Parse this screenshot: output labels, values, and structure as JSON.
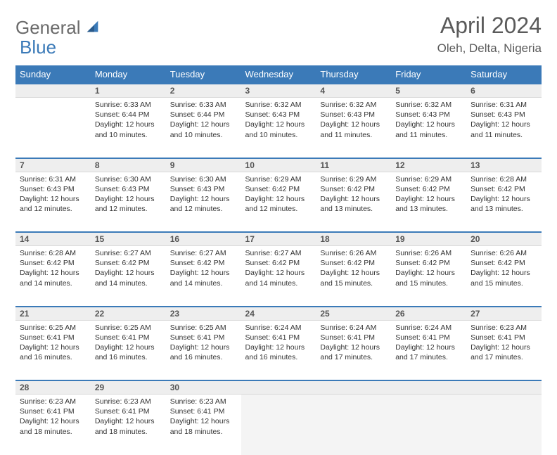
{
  "logo": {
    "word1": "General",
    "word2": "Blue"
  },
  "title": "April 2024",
  "location": "Oleh, Delta, Nigeria",
  "headers": [
    "Sunday",
    "Monday",
    "Tuesday",
    "Wednesday",
    "Thursday",
    "Friday",
    "Saturday"
  ],
  "colors": {
    "header_bg": "#3b7ab8",
    "header_text": "#ffffff",
    "daynum_bg": "#eeeeee",
    "border_accent": "#3b7ab8",
    "logo_gray": "#6b6b6b",
    "logo_blue": "#3b7ab8"
  },
  "weeks": [
    [
      null,
      {
        "n": "1",
        "sr": "Sunrise: 6:33 AM",
        "ss": "Sunset: 6:44 PM",
        "d1": "Daylight: 12 hours",
        "d2": "and 10 minutes."
      },
      {
        "n": "2",
        "sr": "Sunrise: 6:33 AM",
        "ss": "Sunset: 6:44 PM",
        "d1": "Daylight: 12 hours",
        "d2": "and 10 minutes."
      },
      {
        "n": "3",
        "sr": "Sunrise: 6:32 AM",
        "ss": "Sunset: 6:43 PM",
        "d1": "Daylight: 12 hours",
        "d2": "and 10 minutes."
      },
      {
        "n": "4",
        "sr": "Sunrise: 6:32 AM",
        "ss": "Sunset: 6:43 PM",
        "d1": "Daylight: 12 hours",
        "d2": "and 11 minutes."
      },
      {
        "n": "5",
        "sr": "Sunrise: 6:32 AM",
        "ss": "Sunset: 6:43 PM",
        "d1": "Daylight: 12 hours",
        "d2": "and 11 minutes."
      },
      {
        "n": "6",
        "sr": "Sunrise: 6:31 AM",
        "ss": "Sunset: 6:43 PM",
        "d1": "Daylight: 12 hours",
        "d2": "and 11 minutes."
      }
    ],
    [
      {
        "n": "7",
        "sr": "Sunrise: 6:31 AM",
        "ss": "Sunset: 6:43 PM",
        "d1": "Daylight: 12 hours",
        "d2": "and 12 minutes."
      },
      {
        "n": "8",
        "sr": "Sunrise: 6:30 AM",
        "ss": "Sunset: 6:43 PM",
        "d1": "Daylight: 12 hours",
        "d2": "and 12 minutes."
      },
      {
        "n": "9",
        "sr": "Sunrise: 6:30 AM",
        "ss": "Sunset: 6:43 PM",
        "d1": "Daylight: 12 hours",
        "d2": "and 12 minutes."
      },
      {
        "n": "10",
        "sr": "Sunrise: 6:29 AM",
        "ss": "Sunset: 6:42 PM",
        "d1": "Daylight: 12 hours",
        "d2": "and 12 minutes."
      },
      {
        "n": "11",
        "sr": "Sunrise: 6:29 AM",
        "ss": "Sunset: 6:42 PM",
        "d1": "Daylight: 12 hours",
        "d2": "and 13 minutes."
      },
      {
        "n": "12",
        "sr": "Sunrise: 6:29 AM",
        "ss": "Sunset: 6:42 PM",
        "d1": "Daylight: 12 hours",
        "d2": "and 13 minutes."
      },
      {
        "n": "13",
        "sr": "Sunrise: 6:28 AM",
        "ss": "Sunset: 6:42 PM",
        "d1": "Daylight: 12 hours",
        "d2": "and 13 minutes."
      }
    ],
    [
      {
        "n": "14",
        "sr": "Sunrise: 6:28 AM",
        "ss": "Sunset: 6:42 PM",
        "d1": "Daylight: 12 hours",
        "d2": "and 14 minutes."
      },
      {
        "n": "15",
        "sr": "Sunrise: 6:27 AM",
        "ss": "Sunset: 6:42 PM",
        "d1": "Daylight: 12 hours",
        "d2": "and 14 minutes."
      },
      {
        "n": "16",
        "sr": "Sunrise: 6:27 AM",
        "ss": "Sunset: 6:42 PM",
        "d1": "Daylight: 12 hours",
        "d2": "and 14 minutes."
      },
      {
        "n": "17",
        "sr": "Sunrise: 6:27 AM",
        "ss": "Sunset: 6:42 PM",
        "d1": "Daylight: 12 hours",
        "d2": "and 14 minutes."
      },
      {
        "n": "18",
        "sr": "Sunrise: 6:26 AM",
        "ss": "Sunset: 6:42 PM",
        "d1": "Daylight: 12 hours",
        "d2": "and 15 minutes."
      },
      {
        "n": "19",
        "sr": "Sunrise: 6:26 AM",
        "ss": "Sunset: 6:42 PM",
        "d1": "Daylight: 12 hours",
        "d2": "and 15 minutes."
      },
      {
        "n": "20",
        "sr": "Sunrise: 6:26 AM",
        "ss": "Sunset: 6:42 PM",
        "d1": "Daylight: 12 hours",
        "d2": "and 15 minutes."
      }
    ],
    [
      {
        "n": "21",
        "sr": "Sunrise: 6:25 AM",
        "ss": "Sunset: 6:41 PM",
        "d1": "Daylight: 12 hours",
        "d2": "and 16 minutes."
      },
      {
        "n": "22",
        "sr": "Sunrise: 6:25 AM",
        "ss": "Sunset: 6:41 PM",
        "d1": "Daylight: 12 hours",
        "d2": "and 16 minutes."
      },
      {
        "n": "23",
        "sr": "Sunrise: 6:25 AM",
        "ss": "Sunset: 6:41 PM",
        "d1": "Daylight: 12 hours",
        "d2": "and 16 minutes."
      },
      {
        "n": "24",
        "sr": "Sunrise: 6:24 AM",
        "ss": "Sunset: 6:41 PM",
        "d1": "Daylight: 12 hours",
        "d2": "and 16 minutes."
      },
      {
        "n": "25",
        "sr": "Sunrise: 6:24 AM",
        "ss": "Sunset: 6:41 PM",
        "d1": "Daylight: 12 hours",
        "d2": "and 17 minutes."
      },
      {
        "n": "26",
        "sr": "Sunrise: 6:24 AM",
        "ss": "Sunset: 6:41 PM",
        "d1": "Daylight: 12 hours",
        "d2": "and 17 minutes."
      },
      {
        "n": "27",
        "sr": "Sunrise: 6:23 AM",
        "ss": "Sunset: 6:41 PM",
        "d1": "Daylight: 12 hours",
        "d2": "and 17 minutes."
      }
    ],
    [
      {
        "n": "28",
        "sr": "Sunrise: 6:23 AM",
        "ss": "Sunset: 6:41 PM",
        "d1": "Daylight: 12 hours",
        "d2": "and 18 minutes."
      },
      {
        "n": "29",
        "sr": "Sunrise: 6:23 AM",
        "ss": "Sunset: 6:41 PM",
        "d1": "Daylight: 12 hours",
        "d2": "and 18 minutes."
      },
      {
        "n": "30",
        "sr": "Sunrise: 6:23 AM",
        "ss": "Sunset: 6:41 PM",
        "d1": "Daylight: 12 hours",
        "d2": "and 18 minutes."
      },
      null,
      null,
      null,
      null
    ]
  ]
}
